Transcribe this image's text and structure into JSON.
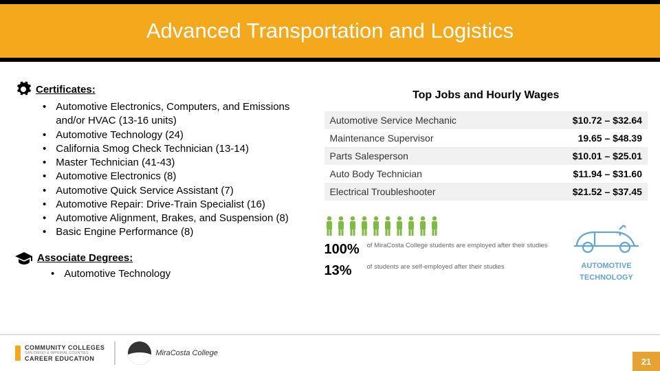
{
  "colors": {
    "gold": "#f4a81c",
    "black": "#000000",
    "white": "#ffffff",
    "person_green": "#7fbb42",
    "car_blue": "#5ea5d6",
    "row_alt": "#f0f0f0"
  },
  "header": {
    "title": "Advanced Transportation and Logistics"
  },
  "certificates": {
    "heading": "Certificates:",
    "items": [
      "Automotive Electronics, Computers, and Emissions and/or HVAC (13-16 units)",
      "Automotive Technology (24)",
      "California Smog Check Technician (13-14)",
      "Master Technician (41-43)",
      "Automotive Electronics (8)",
      "Automotive Quick Service Assistant (7)",
      "Automotive Repair: Drive-Train Specialist (16)",
      "Automotive Alignment, Brakes, and Suspension (8)",
      "Basic Engine Performance (8)"
    ]
  },
  "degrees": {
    "heading": "Associate Degrees:",
    "items": [
      "Automotive Technology"
    ]
  },
  "right": {
    "title": "Top Jobs and Hourly Wages",
    "jobs": [
      {
        "name": "Automotive Service Mechanic",
        "wage": "$10.72 – $32.64"
      },
      {
        "name": "Maintenance Supervisor",
        "wage": "19.65 – $48.39"
      },
      {
        "name": "Parts Salesperson",
        "wage": "$10.01 – $25.01"
      },
      {
        "name": "Auto Body Technician",
        "wage": "$11.94 – $31.60"
      },
      {
        "name": "Electrical Troubleshooter",
        "wage": "$21.52 – $37.45"
      }
    ]
  },
  "stats": {
    "people_count": 10,
    "lines": [
      {
        "num": "100%",
        "text": "of MiraCosta College students are employed after their studies"
      },
      {
        "num": "13%",
        "text": "of students are self-employed after their studies"
      }
    ],
    "label_l1": "AUTOMOTIVE",
    "label_l2": "TECHNOLOGY"
  },
  "footer": {
    "cc_top": "COMMUNITY COLLEGES",
    "cc_sub": "SAN DIEGO & IMPERIAL COUNTIES",
    "cc_bot": "CAREER EDUCATION",
    "mira": "MiraCosta College",
    "page": "21"
  }
}
